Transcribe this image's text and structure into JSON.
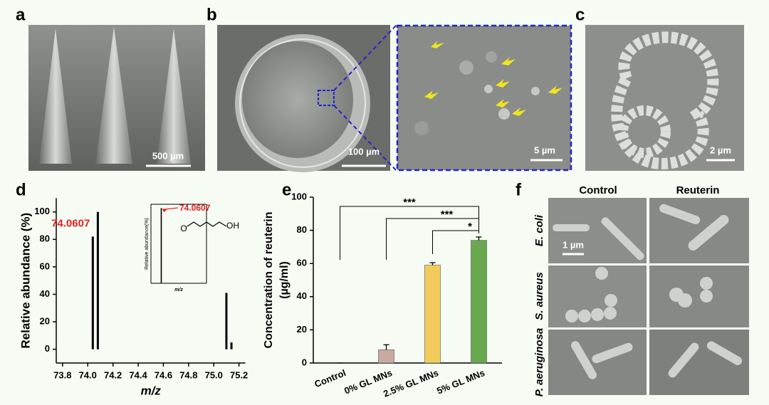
{
  "figure": {
    "a": {
      "label": "a",
      "scale_bar": "500 µm"
    },
    "b": {
      "label": "b",
      "scale_bar": "100 µm",
      "inset_scale_bar": "5 µm"
    },
    "c": {
      "label": "c",
      "scale_bar": "2 µm"
    },
    "f": {
      "label": "f",
      "columns": [
        "Control",
        "Reuterin"
      ],
      "rows": [
        "E. coli",
        "S. aureus",
        "P. aeruginosa"
      ],
      "scale_bar": "1 µm"
    }
  },
  "chart_data": [
    {
      "panel": "d",
      "type": "spectrum",
      "x": [
        74.04,
        74.08,
        75.1,
        75.14
      ],
      "values": [
        82,
        100,
        41,
        5
      ],
      "color": "#000000",
      "xlim": [
        73.75,
        75.25
      ],
      "xticks": [
        73.8,
        {
          "value": 74,
          "label": "74.0"
        },
        74.2,
        74.4,
        74.6,
        74.8,
        {
          "value": 75,
          "label": "75.0"
        },
        75.2
      ],
      "ylim": [
        -10,
        110
      ],
      "yticks": [
        0,
        20,
        40,
        60,
        80,
        100
      ],
      "y_label": "Relative abundance (%)",
      "x_label": "m/z",
      "annotation": {
        "text": "74.0607",
        "color": "#e8201c"
      },
      "inset": {
        "type": "spectrum",
        "x": [
          74.06
        ],
        "values": [
          100
        ],
        "color": "#000000",
        "xlim": [
          73.8,
          75.2
        ],
        "ylim": [
          0,
          105
        ],
        "y_label": "Relative abundance(%)",
        "x_label": "m/z",
        "annotation": {
          "text": "74.0607",
          "color": "#e8201c"
        },
        "structure_labels": [
          "O",
          "OH"
        ]
      }
    },
    {
      "panel": "e",
      "type": "bar",
      "categories": [
        "Control",
        "0% GL MNs",
        "2.5% GL MNs",
        "5% GL MNs"
      ],
      "values": [
        0,
        8,
        59,
        74
      ],
      "errors": [
        0,
        3,
        1.5,
        2
      ],
      "colors": [
        "#bfbfbf",
        "#c9a9a0",
        "#f2cc5b",
        "#6aa84f"
      ],
      "ylim": [
        0,
        100
      ],
      "yticks": [
        0,
        20,
        40,
        60,
        80,
        100
      ],
      "y_label": [
        "Concentration of reuterin",
        "(µg/ml)"
      ],
      "significance": [
        {
          "label": "***",
          "between": [
            "Control",
            "5% GL MNs"
          ]
        },
        {
          "label": "***",
          "between": [
            "0% GL MNs",
            "5% GL MNs"
          ]
        },
        {
          "label": "*",
          "between": [
            "2.5% GL MNs",
            "5% GL MNs"
          ]
        }
      ]
    }
  ]
}
